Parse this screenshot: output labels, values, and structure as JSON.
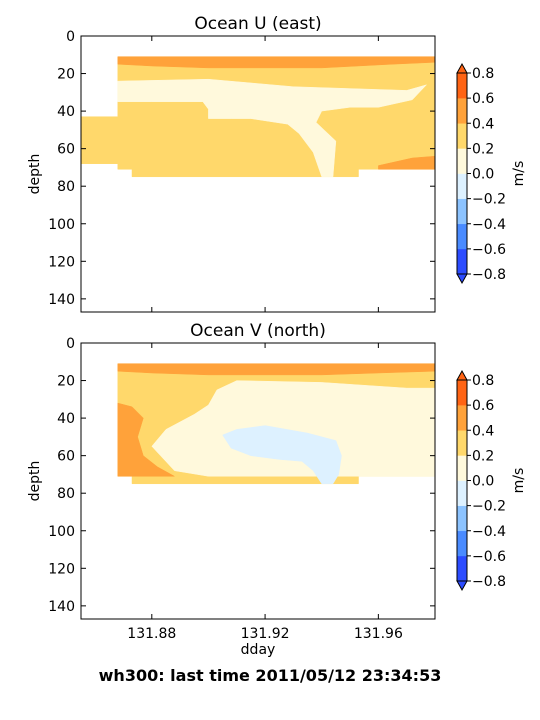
{
  "footer": "wh300: last time 2011/05/12 23:34:53",
  "chart_data": [
    {
      "type": "heatmap",
      "title": "Ocean U (east)",
      "xlabel": "",
      "ylabel": "depth",
      "xlim": [
        131.855,
        131.98
      ],
      "ylim": [
        147,
        0
      ],
      "yticks": [
        0,
        20,
        40,
        60,
        80,
        100,
        120,
        140
      ],
      "xticks": [
        131.88,
        131.92,
        131.96
      ],
      "show_xticklabels": false,
      "colorbar": {
        "label": "m/s",
        "ticks": [
          "0.8",
          "0.6",
          "0.4",
          "0.2",
          "0.0",
          "−0.2",
          "−0.4",
          "−0.6",
          "−0.8"
        ],
        "levels": [
          -0.8,
          -0.6,
          -0.4,
          -0.2,
          0.0,
          0.2,
          0.4,
          0.6,
          0.8
        ],
        "colors": [
          "#2c4cff",
          "#4a8bff",
          "#8cc3ff",
          "#ddf1ff",
          "#fff9dc",
          "#ffd86b",
          "#ffa23a",
          "#ff6414"
        ]
      },
      "regions": [
        {
          "level": "0.2 to 0.4",
          "color": "#ffd86b",
          "poly": [
            [
              131.868,
              11
            ],
            [
              131.98,
              11
            ],
            [
              131.98,
              71
            ],
            [
              131.953,
              71
            ],
            [
              131.953,
              75
            ],
            [
              131.873,
              75
            ],
            [
              131.873,
              71
            ],
            [
              131.868,
              71
            ],
            [
              131.868,
              68
            ],
            [
              131.855,
              68
            ],
            [
              131.855,
              43
            ],
            [
              131.868,
              43
            ]
          ]
        },
        {
          "level": "0.4 to 0.6",
          "color": "#ffa23a",
          "poly": [
            [
              131.868,
              11
            ],
            [
              131.98,
              11
            ],
            [
              131.98,
              14
            ],
            [
              131.965,
              15
            ],
            [
              131.94,
              17
            ],
            [
              131.9,
              17
            ],
            [
              131.88,
              16
            ],
            [
              131.868,
              15
            ]
          ]
        },
        {
          "level": "0.4 to 0.6",
          "color": "#ffa23a",
          "poly": [
            [
              131.96,
              71
            ],
            [
              131.98,
              71
            ],
            [
              131.98,
              64
            ],
            [
              131.972,
              65
            ],
            [
              131.96,
              69
            ]
          ]
        },
        {
          "level": "0.0 to 0.2",
          "color": "#fff9dc",
          "poly": [
            [
              131.868,
              24
            ],
            [
              131.9,
              23
            ],
            [
              131.93,
              27
            ],
            [
              131.97,
              29
            ],
            [
              131.977,
              26
            ],
            [
              131.972,
              34
            ],
            [
              131.96,
              38
            ],
            [
              131.95,
              38
            ],
            [
              131.94,
              40
            ],
            [
              131.938,
              46
            ],
            [
              131.945,
              56
            ],
            [
              131.944,
              75
            ],
            [
              131.94,
              75
            ],
            [
              131.937,
              62
            ],
            [
              131.932,
              52
            ],
            [
              131.928,
              47
            ],
            [
              131.915,
              44
            ],
            [
              131.908,
              44
            ],
            [
              131.9,
              44
            ],
            [
              131.9,
              39
            ],
            [
              131.898,
              35
            ],
            [
              131.88,
              35
            ],
            [
              131.868,
              35
            ]
          ]
        }
      ]
    },
    {
      "type": "heatmap",
      "title": "Ocean V (north)",
      "xlabel": "dday",
      "ylabel": "depth",
      "xlim": [
        131.855,
        131.98
      ],
      "ylim": [
        147,
        0
      ],
      "yticks": [
        0,
        20,
        40,
        60,
        80,
        100,
        120,
        140
      ],
      "xticks": [
        131.88,
        131.92,
        131.96
      ],
      "xticklabels": [
        "131.88",
        "131.92",
        "131.96"
      ],
      "show_xticklabels": true,
      "colorbar": {
        "label": "m/s",
        "ticks": [
          "0.8",
          "0.6",
          "0.4",
          "0.2",
          "0.0",
          "−0.2",
          "−0.4",
          "−0.6",
          "−0.8"
        ],
        "levels": [
          -0.8,
          -0.6,
          -0.4,
          -0.2,
          0.0,
          0.2,
          0.4,
          0.6,
          0.8
        ],
        "colors": [
          "#2c4cff",
          "#4a8bff",
          "#8cc3ff",
          "#ddf1ff",
          "#fff9dc",
          "#ffd86b",
          "#ffa23a",
          "#ff6414"
        ]
      },
      "regions": [
        {
          "level": "0.2 to 0.4",
          "color": "#ffd86b",
          "poly": [
            [
              131.868,
              11
            ],
            [
              131.98,
              11
            ],
            [
              131.98,
              71
            ],
            [
              131.953,
              71
            ],
            [
              131.953,
              75
            ],
            [
              131.873,
              75
            ],
            [
              131.873,
              71
            ],
            [
              131.868,
              71
            ]
          ]
        },
        {
          "level": "0.4 to 0.6",
          "color": "#ffa23a",
          "poly": [
            [
              131.868,
              11
            ],
            [
              131.98,
              11
            ],
            [
              131.98,
              15
            ],
            [
              131.96,
              16
            ],
            [
              131.94,
              17
            ],
            [
              131.9,
              17
            ],
            [
              131.88,
              16
            ],
            [
              131.868,
              15
            ]
          ]
        },
        {
          "level": "0.4 to 0.6",
          "color": "#ffa23a",
          "poly": [
            [
              131.868,
              32
            ],
            [
              131.873,
              34
            ],
            [
              131.877,
              40
            ],
            [
              131.875,
              50
            ],
            [
              131.877,
              60
            ],
            [
              131.882,
              66
            ],
            [
              131.888,
              71
            ],
            [
              131.868,
              71
            ]
          ]
        },
        {
          "level": "0.0 to 0.2",
          "color": "#fff9dc",
          "poly": [
            [
              131.98,
              24
            ],
            [
              131.97,
              24
            ],
            [
              131.96,
              23
            ],
            [
              131.94,
              21
            ],
            [
              131.91,
              20
            ],
            [
              131.903,
              25
            ],
            [
              131.9,
              33
            ],
            [
              131.895,
              38
            ],
            [
              131.885,
              46
            ],
            [
              131.88,
              55
            ],
            [
              131.888,
              68
            ],
            [
              131.9,
              71
            ],
            [
              131.98,
              71
            ]
          ]
        },
        {
          "level": "-0.2 to 0.0",
          "color": "#ddf1ff",
          "poly": [
            [
              131.92,
              44
            ],
            [
              131.935,
              48
            ],
            [
              131.945,
              52
            ],
            [
              131.947,
              60
            ],
            [
              131.946,
              70
            ],
            [
              131.944,
              75
            ],
            [
              131.94,
              75
            ],
            [
              131.937,
              68
            ],
            [
              131.933,
              63
            ],
            [
              131.925,
              62
            ],
            [
              131.915,
              60
            ],
            [
              131.908,
              56
            ],
            [
              131.905,
              49
            ],
            [
              131.91,
              46
            ]
          ]
        }
      ]
    }
  ]
}
